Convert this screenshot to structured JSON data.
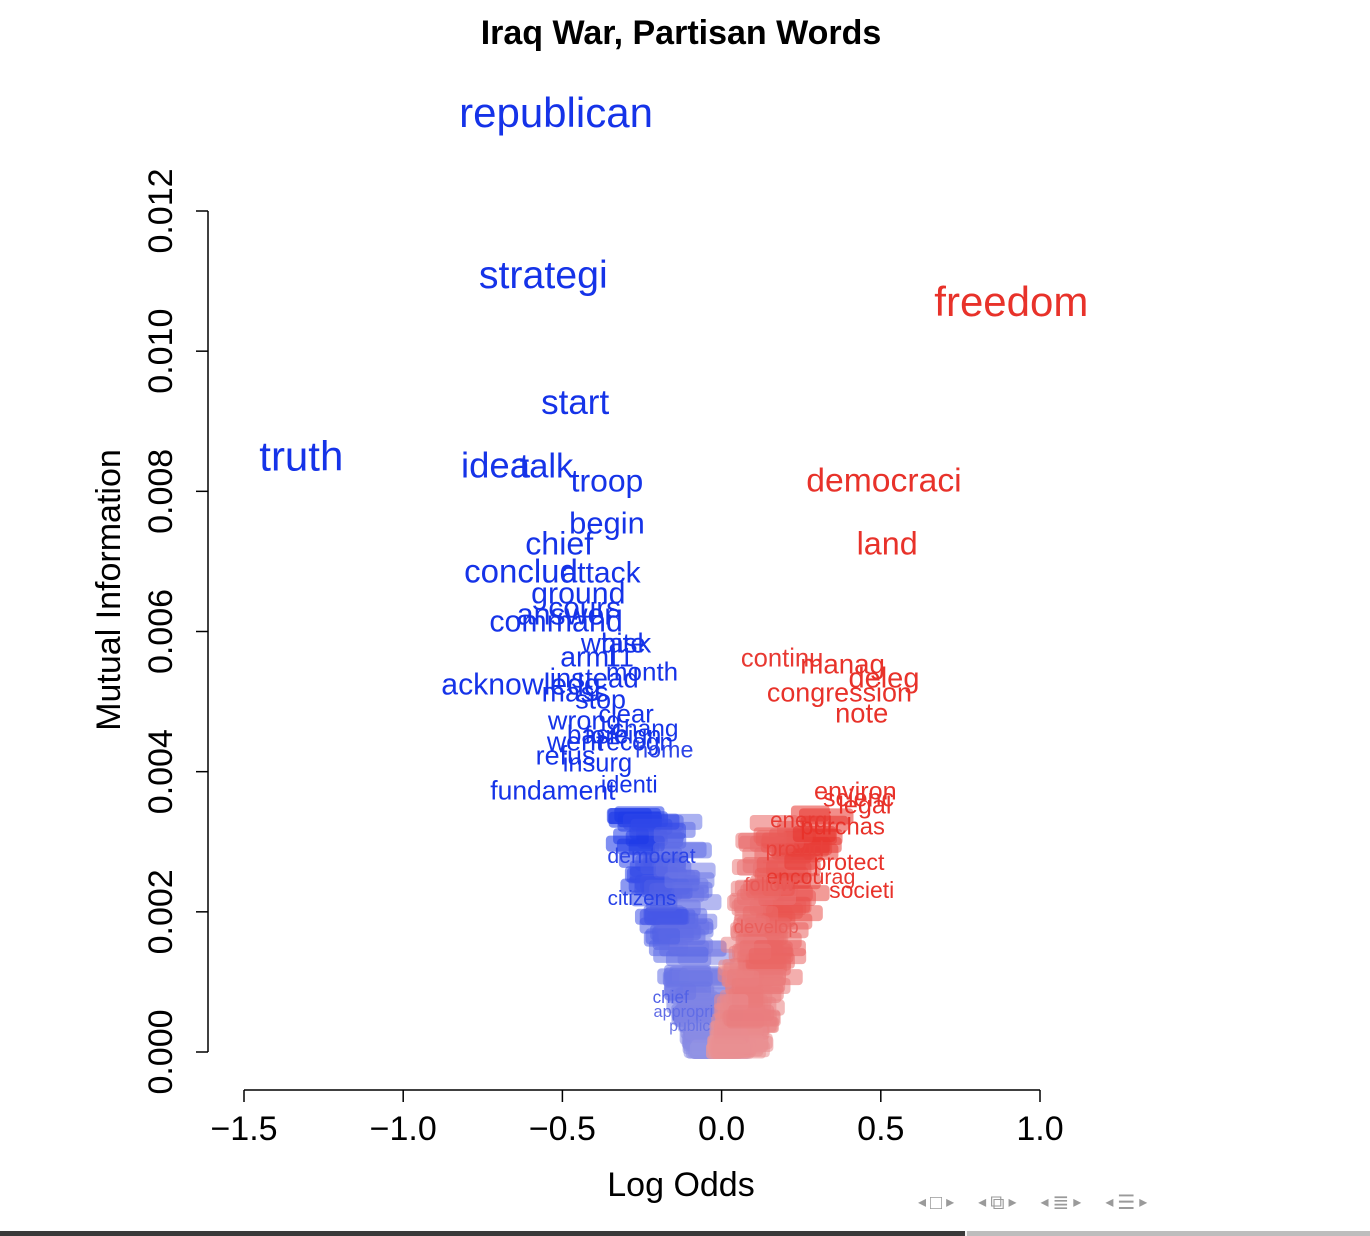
{
  "chart_data": {
    "type": "scatter",
    "title": "Iraq War, Partisan Words",
    "xlabel": "Log Odds",
    "ylabel": "Mutual Information",
    "xlim": [
      -1.5,
      1.0
    ],
    "ylim": [
      0.0,
      0.012
    ],
    "x_ticks": [
      "−1.5",
      "−1.0",
      "−0.5",
      "0.0",
      "0.5",
      "1.0"
    ],
    "x_tick_values": [
      -1.5,
      -1.0,
      -0.5,
      0.0,
      0.5,
      1.0
    ],
    "y_ticks": [
      "0.000",
      "0.002",
      "0.004",
      "0.006",
      "0.008",
      "0.010",
      "0.012"
    ],
    "y_tick_values": [
      0.0,
      0.002,
      0.004,
      0.006,
      0.008,
      0.01,
      0.012
    ],
    "colors": {
      "republican_side": "#1533e8",
      "democrat_side": "#e8322a"
    },
    "labeled_points": [
      {
        "word": "republican",
        "x": -0.52,
        "y": 0.0132
      },
      {
        "word": "strategi",
        "x": -0.56,
        "y": 0.0109
      },
      {
        "word": "freedom",
        "x": 0.91,
        "y": 0.0105
      },
      {
        "word": "start",
        "x": -0.46,
        "y": 0.0091
      },
      {
        "word": "truth",
        "x": -1.32,
        "y": 0.0083
      },
      {
        "word": "idea",
        "x": -0.71,
        "y": 0.0082
      },
      {
        "word": "talk",
        "x": -0.55,
        "y": 0.0082
      },
      {
        "word": "troop",
        "x": -0.36,
        "y": 0.008
      },
      {
        "word": "democraci",
        "x": 0.51,
        "y": 0.008
      },
      {
        "word": "begin",
        "x": -0.36,
        "y": 0.0074
      },
      {
        "word": "land",
        "x": 0.52,
        "y": 0.0071
      },
      {
        "word": "chief",
        "x": -0.51,
        "y": 0.0071
      },
      {
        "word": "conclud",
        "x": -0.63,
        "y": 0.0067
      },
      {
        "word": "attack",
        "x": -0.38,
        "y": 0.0067
      },
      {
        "word": "ground",
        "x": -0.45,
        "y": 0.0064
      },
      {
        "word": "cours",
        "x": -0.43,
        "y": 0.0062
      },
      {
        "word": "answer",
        "x": -0.49,
        "y": 0.0061
      },
      {
        "word": "command",
        "x": -0.52,
        "y": 0.006
      },
      {
        "word": "white",
        "x": -0.34,
        "y": 0.0057
      },
      {
        "word": "task",
        "x": -0.3,
        "y": 0.0057
      },
      {
        "word": "armi",
        "x": -0.42,
        "y": 0.0055
      },
      {
        "word": "11",
        "x": -0.32,
        "y": 0.0055
      },
      {
        "word": "continu",
        "x": 0.19,
        "y": 0.0055
      },
      {
        "word": "manag",
        "x": 0.38,
        "y": 0.0054
      },
      {
        "word": "month",
        "x": -0.25,
        "y": 0.0053
      },
      {
        "word": "instead",
        "x": -0.4,
        "y": 0.0052
      },
      {
        "word": "acknowledg",
        "x": -0.63,
        "y": 0.0051
      },
      {
        "word": "deleg",
        "x": 0.51,
        "y": 0.0052
      },
      {
        "word": "congression",
        "x": 0.37,
        "y": 0.005
      },
      {
        "word": "mass",
        "x": -0.46,
        "y": 0.005
      },
      {
        "word": "stop",
        "x": -0.38,
        "y": 0.0049
      },
      {
        "word": "note",
        "x": 0.44,
        "y": 0.0047
      },
      {
        "word": "clear",
        "x": -0.3,
        "y": 0.0047
      },
      {
        "word": "wrong",
        "x": -0.43,
        "y": 0.0046
      },
      {
        "word": "chang",
        "x": -0.24,
        "y": 0.0045
      },
      {
        "word": "basic",
        "x": -0.39,
        "y": 0.0044
      },
      {
        "word": "foreign",
        "x": -0.31,
        "y": 0.0044
      },
      {
        "word": "went",
        "x": -0.46,
        "y": 0.0043
      },
      {
        "word": "recogn",
        "x": -0.27,
        "y": 0.0043
      },
      {
        "word": "home",
        "x": -0.18,
        "y": 0.0042
      },
      {
        "word": "refus",
        "x": -0.49,
        "y": 0.0041
      },
      {
        "word": "insurg",
        "x": -0.39,
        "y": 0.004
      },
      {
        "word": "fundament",
        "x": -0.53,
        "y": 0.0036
      },
      {
        "word": "identi",
        "x": -0.29,
        "y": 0.0037
      },
      {
        "word": "environ",
        "x": 0.42,
        "y": 0.0036
      },
      {
        "word": "scienc",
        "x": 0.43,
        "y": 0.0035
      },
      {
        "word": "legal",
        "x": 0.45,
        "y": 0.0034
      },
      {
        "word": "energi",
        "x": 0.25,
        "y": 0.0032
      },
      {
        "word": "purchas",
        "x": 0.38,
        "y": 0.0031
      },
      {
        "word": "provid",
        "x": 0.23,
        "y": 0.0028
      },
      {
        "word": "protect",
        "x": 0.4,
        "y": 0.0026
      },
      {
        "word": "encourag",
        "x": 0.28,
        "y": 0.0024
      },
      {
        "word": "follow",
        "x": 0.15,
        "y": 0.0023
      },
      {
        "word": "societi",
        "x": 0.44,
        "y": 0.0022
      },
      {
        "word": "develop",
        "x": 0.14,
        "y": 0.0017
      },
      {
        "word": "citizens",
        "x": -0.25,
        "y": 0.0021
      },
      {
        "word": "democrat",
        "x": -0.22,
        "y": 0.0027
      },
      {
        "word": "appropri",
        "x": -0.12,
        "y": 0.0005
      },
      {
        "word": "public",
        "x": -0.1,
        "y": 0.0003
      },
      {
        "word": "chief",
        "x": -0.16,
        "y": 0.0007
      }
    ],
    "cloud_counts": {
      "republican_side": 180,
      "democrat_side": 200
    }
  },
  "nav": {
    "arrow_left": "◂",
    "arrow_right": "▸",
    "icons": [
      "frame-icon",
      "subsection-icon",
      "section-icon",
      "document-icon"
    ]
  },
  "progress": 0.705
}
